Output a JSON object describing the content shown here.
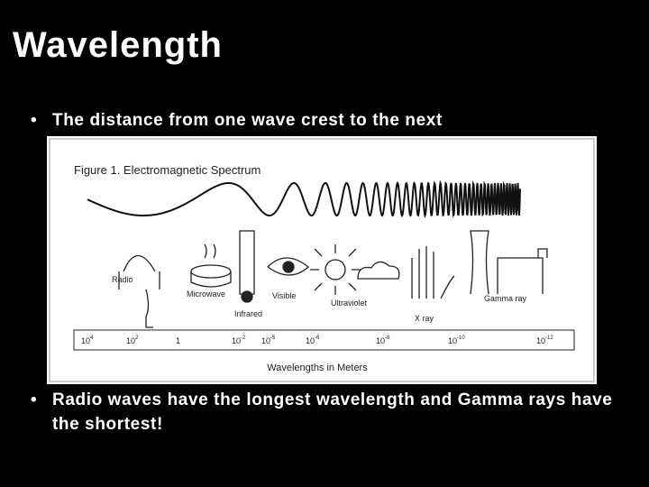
{
  "title": "Wavelength",
  "bullets": [
    "The distance from one wave crest to the next",
    "Radio waves have the longest wavelength and Gamma rays have the shortest!"
  ],
  "figure": {
    "title": "Figure 1. Electromagnetic Spectrum",
    "bands": [
      "Radio",
      "Microwave",
      "Infrared",
      "Visible",
      "Ultraviolet",
      "X ray",
      "Gamma ray"
    ],
    "scale": [
      {
        "base": "10",
        "exp": "4"
      },
      {
        "base": "10",
        "exp": "2"
      },
      {
        "base": "1"
      },
      {
        "base": "10",
        "exp": "-2"
      },
      {
        "base": "10",
        "exp": "-5"
      },
      {
        "base": "10",
        "exp": "-6"
      },
      {
        "base": "10",
        "exp": "-8"
      },
      {
        "base": "10",
        "exp": "-10"
      },
      {
        "base": "10",
        "exp": "-12"
      }
    ],
    "axis_label": "Wavelengths in Meters"
  }
}
